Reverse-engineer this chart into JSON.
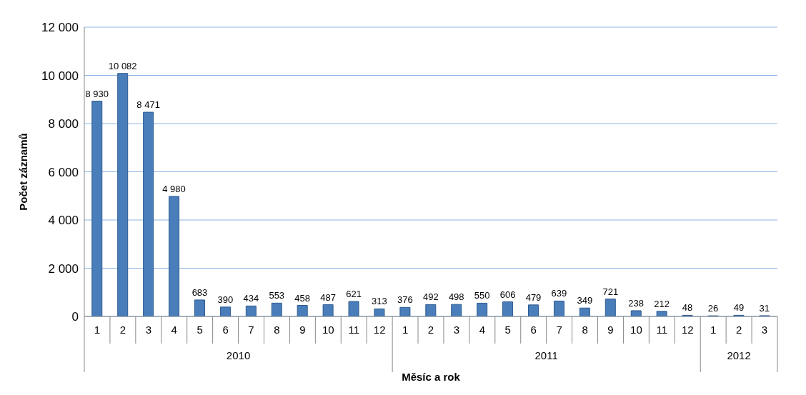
{
  "chart_data": {
    "type": "bar",
    "xlabel": "Měsíc a rok",
    "ylabel": "Počet záznamů",
    "categories": [
      "1",
      "2",
      "3",
      "4",
      "5",
      "6",
      "7",
      "8",
      "9",
      "10",
      "11",
      "12",
      "1",
      "2",
      "3",
      "4",
      "5",
      "6",
      "7",
      "8",
      "9",
      "10",
      "11",
      "12",
      "1",
      "2",
      "3"
    ],
    "values": [
      8930,
      10082,
      8471,
      4980,
      683,
      390,
      434,
      553,
      458,
      487,
      621,
      313,
      376,
      492,
      498,
      550,
      606,
      479,
      639,
      349,
      721,
      238,
      212,
      48,
      26,
      49,
      31
    ],
    "value_labels": [
      "8 930",
      "10 082",
      "8 471",
      "4 980",
      "683",
      "390",
      "434",
      "553",
      "458",
      "487",
      "621",
      "313",
      "376",
      "492",
      "498",
      "550",
      "606",
      "479",
      "639",
      "349",
      "721",
      "238",
      "212",
      "48",
      "26",
      "49",
      "31"
    ],
    "color": "#4a7ebb",
    "annotations": [
      "2010",
      "2011",
      "2012"
    ],
    "ylim": [
      0,
      12000
    ],
    "yticks": [
      0,
      {
        "value": 2000,
        "label": "2 000"
      },
      {
        "value": 4000,
        "label": "4 000"
      },
      {
        "value": 6000,
        "label": "6 000"
      },
      {
        "value": 8000,
        "label": "8 000"
      },
      {
        "value": 10000,
        "label": "10 000"
      },
      {
        "value": 12000,
        "label": "12 000"
      }
    ],
    "grid": "y"
  }
}
